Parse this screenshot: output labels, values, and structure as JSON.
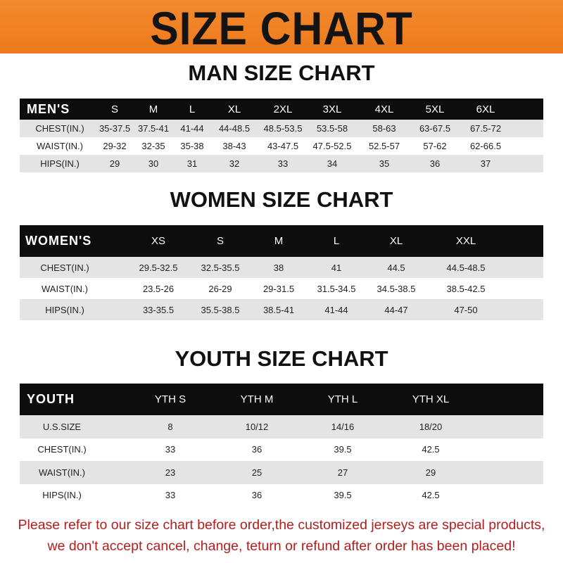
{
  "banner": {
    "title": "SIZE CHART",
    "color": "#ef7f22"
  },
  "men": {
    "title": "MAN SIZE CHART",
    "header": [
      "MEN'S",
      "S",
      "M",
      "L",
      "XL",
      "2XL",
      "3XL",
      "4XL",
      "5XL",
      "6XL"
    ],
    "rows": [
      [
        "CHEST(IN.)",
        "35-37.5",
        "37.5-41",
        "41-44",
        "44-48.5",
        "48.5-53.5",
        "53.5-58",
        "58-63",
        "63-67.5",
        "67.5-72"
      ],
      [
        "WAIST(IN.)",
        "29-32",
        "32-35",
        "35-38",
        "38-43",
        "43-47.5",
        "47.5-52.5",
        "52.5-57",
        "57-62",
        "62-66.5"
      ],
      [
        "HIPS(IN.)",
        "29",
        "30",
        "31",
        "32",
        "33",
        "34",
        "35",
        "36",
        "37"
      ]
    ]
  },
  "women": {
    "title": "WOMEN SIZE CHART",
    "header": [
      "WOMEN'S",
      "XS",
      "S",
      "M",
      "L",
      "XL",
      "XXL"
    ],
    "rows": [
      [
        "CHEST(IN.)",
        "29.5-32.5",
        "32.5-35.5",
        "38",
        "41",
        "44.5",
        "44.5-48.5"
      ],
      [
        "WAIST(IN.)",
        "23.5-26",
        "26-29",
        "29-31.5",
        "31.5-34.5",
        "34.5-38.5",
        "38.5-42.5"
      ],
      [
        "HIPS(IN.)",
        "33-35.5",
        "35.5-38.5",
        "38.5-41",
        "41-44",
        "44-47",
        "47-50"
      ]
    ]
  },
  "youth": {
    "title": "YOUTH SIZE CHART",
    "header": [
      "YOUTH",
      "YTH S",
      "YTH M",
      "YTH L",
      "YTH XL"
    ],
    "rows": [
      [
        "U.S.SIZE",
        "8",
        "10/12",
        "14/16",
        "18/20"
      ],
      [
        "CHEST(IN.)",
        "33",
        "36",
        "39.5",
        "42.5"
      ],
      [
        "WAIST(IN.)",
        "23",
        "25",
        "27",
        "29"
      ],
      [
        "HIPS(IN.)",
        "33",
        "36",
        "39.5",
        "42.5"
      ]
    ]
  },
  "notice": {
    "line1": "Please refer to our size chart before order,the customized jerseys are special products,",
    "line2": "we don't accept cancel, change, teturn or refund after order has been placed!",
    "color": "#b01e1e"
  }
}
